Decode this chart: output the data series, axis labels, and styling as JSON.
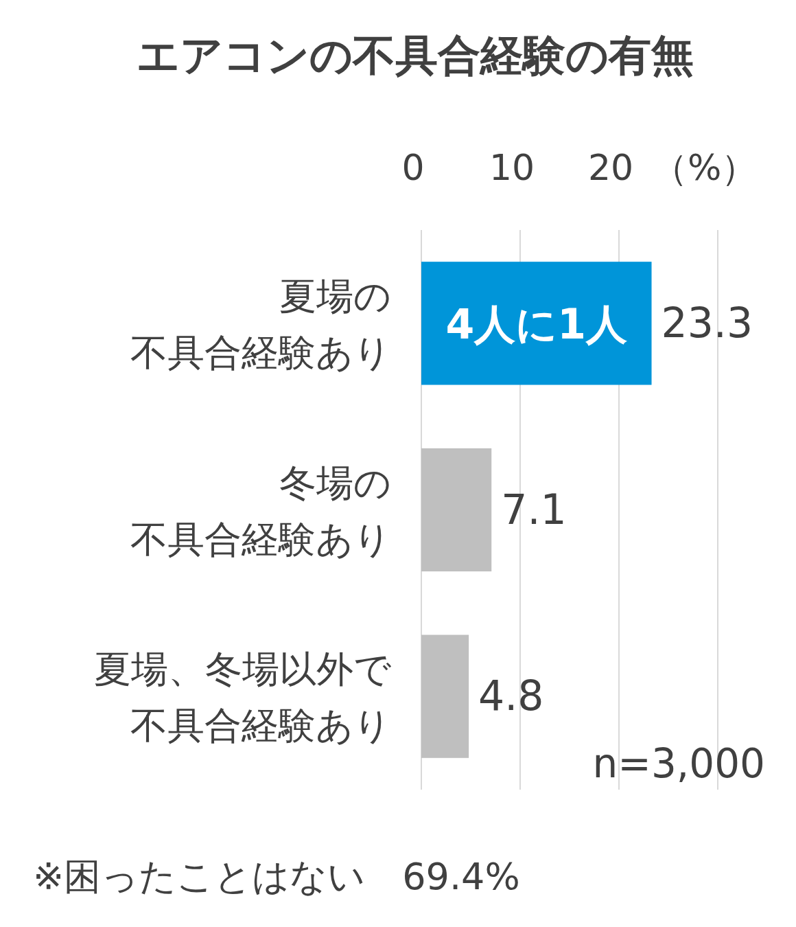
{
  "chart_data": {
    "type": "bar",
    "orientation": "horizontal",
    "title": "エアコンの不具合経験の有無",
    "categories": [
      "夏場の不具合経験あり",
      "冬場の不具合経験あり",
      "夏場、冬場以外で不具合経験あり"
    ],
    "values": [
      23.3,
      7.1,
      4.8
    ],
    "colors": [
      "#0095d9",
      "#bfbfbf",
      "#bfbfbf"
    ],
    "xlim": [
      0,
      30
    ],
    "xticks": [
      0,
      10,
      20,
      {
        "value": 30,
        "label": null
      }
    ],
    "xlabel": "（%）",
    "grid": "x",
    "data_labels": true,
    "annotations": [
      "4人に1人",
      "n=3,000",
      "※困ったことはない　69.4%"
    ]
  }
}
